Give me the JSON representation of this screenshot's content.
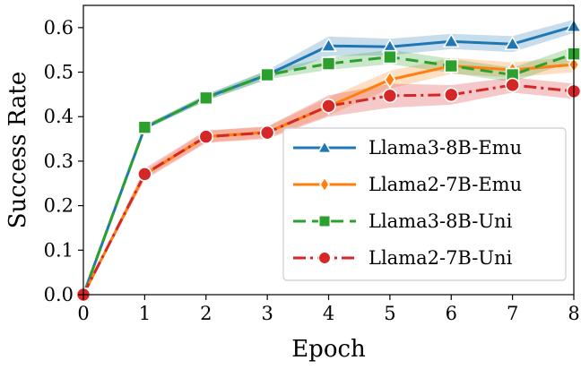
{
  "chart_data": {
    "type": "line",
    "title": "",
    "xlabel": "Epoch",
    "ylabel": "Success Rate",
    "x": [
      0,
      1,
      2,
      3,
      4,
      5,
      6,
      7,
      8
    ],
    "xlim": [
      0,
      8
    ],
    "ylim": [
      0,
      0.65
    ],
    "xticks": [
      "0",
      "1",
      "2",
      "3",
      "4",
      "5",
      "6",
      "7",
      "8"
    ],
    "yticks": [
      "0.0",
      "0.1",
      "0.2",
      "0.3",
      "0.4",
      "0.5",
      "0.6"
    ],
    "grid": false,
    "legend_position": "lower-right",
    "series": [
      {
        "name": "Llama3-8B-Emu",
        "color": "#1f77b4",
        "marker": "triangle",
        "linestyle": "solid",
        "values": [
          0.0,
          0.375,
          0.443,
          0.494,
          0.559,
          0.557,
          0.569,
          0.563,
          0.603
        ],
        "lower": [
          0.0,
          0.37,
          0.436,
          0.484,
          0.536,
          0.538,
          0.552,
          0.545,
          0.588
        ],
        "upper": [
          0.0,
          0.38,
          0.45,
          0.504,
          0.58,
          0.575,
          0.586,
          0.581,
          0.618
        ]
      },
      {
        "name": "Llama2-7B-Emu",
        "color": "#ff7f0e",
        "marker": "diamond",
        "linestyle": "solid",
        "values": [
          0.0,
          0.27,
          0.355,
          0.365,
          0.423,
          0.483,
          0.514,
          0.505,
          0.517
        ],
        "lower": [
          0.0,
          0.262,
          0.342,
          0.353,
          0.403,
          0.463,
          0.496,
          0.488,
          0.5
        ],
        "upper": [
          0.0,
          0.278,
          0.368,
          0.377,
          0.443,
          0.503,
          0.532,
          0.522,
          0.534
        ]
      },
      {
        "name": "Llama3-8B-Uni",
        "color": "#2ca02c",
        "marker": "square",
        "linestyle": "dashed",
        "values": [
          0.0,
          0.376,
          0.442,
          0.494,
          0.519,
          0.534,
          0.514,
          0.494,
          0.541
        ],
        "lower": [
          0.0,
          0.371,
          0.435,
          0.484,
          0.505,
          0.518,
          0.498,
          0.478,
          0.525
        ],
        "upper": [
          0.0,
          0.381,
          0.449,
          0.504,
          0.533,
          0.55,
          0.53,
          0.51,
          0.557
        ]
      },
      {
        "name": "Llama2-7B-Uni",
        "color": "#d62728",
        "marker": "circle",
        "linestyle": "dashdot",
        "values": [
          0.0,
          0.271,
          0.355,
          0.364,
          0.424,
          0.447,
          0.449,
          0.471,
          0.457
        ],
        "lower": [
          0.0,
          0.258,
          0.341,
          0.35,
          0.4,
          0.42,
          0.427,
          0.454,
          0.44
        ],
        "upper": [
          0.0,
          0.284,
          0.369,
          0.378,
          0.448,
          0.474,
          0.471,
          0.488,
          0.474
        ]
      }
    ]
  }
}
